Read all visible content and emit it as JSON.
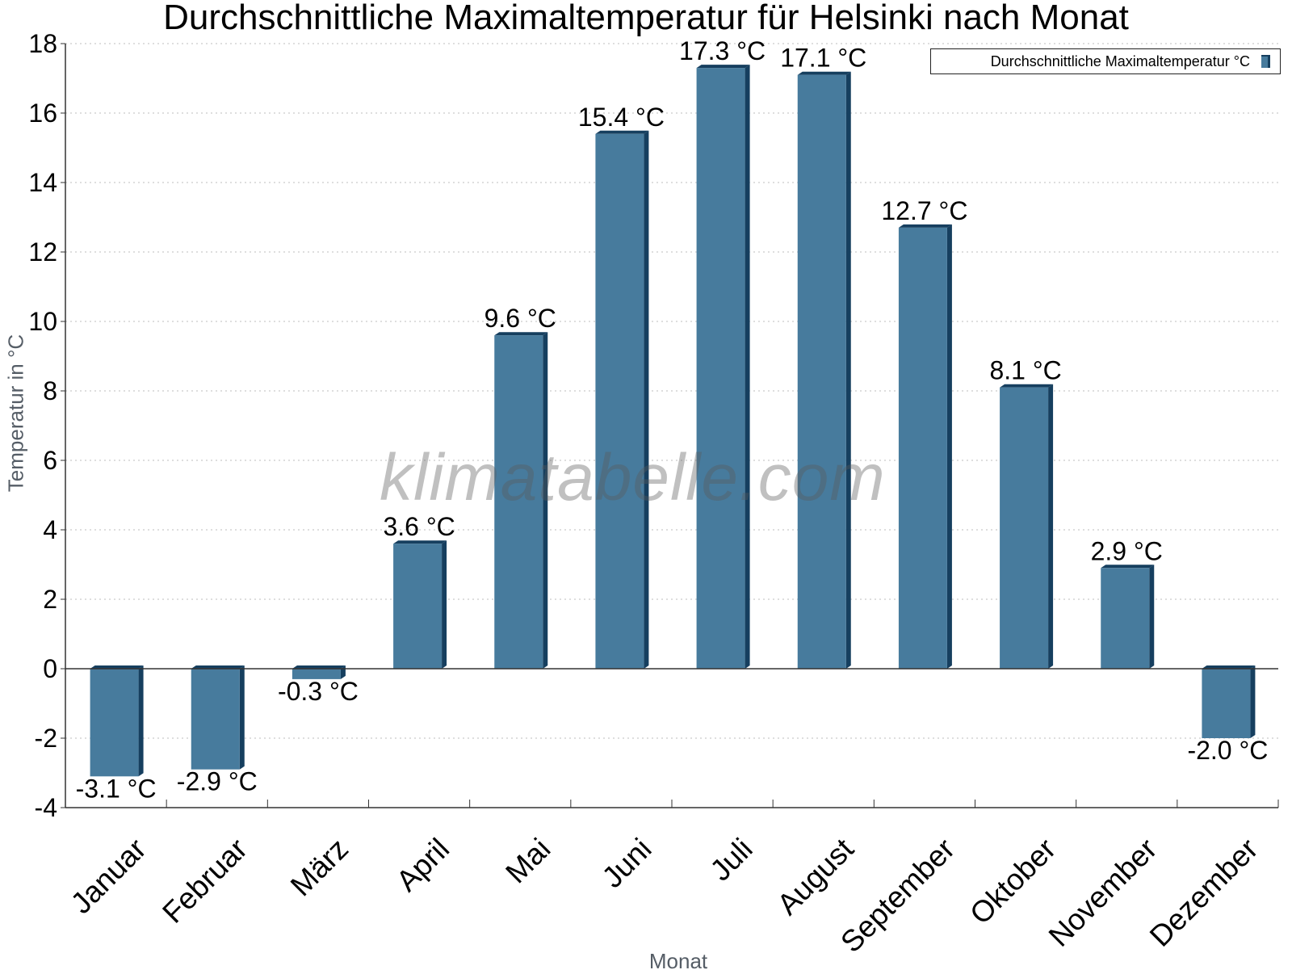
{
  "chart_data": {
    "type": "bar",
    "title": "Durchschnittliche Maximaltemperatur für Helsinki nach Monat",
    "xlabel": "Monat",
    "ylabel": "Temperatur in °C",
    "ylim": [
      -4,
      18
    ],
    "yticks": [
      -4,
      -2,
      0,
      2,
      4,
      6,
      8,
      10,
      12,
      14,
      16,
      18
    ],
    "grid": true,
    "legend_position": "top-right",
    "categories": [
      "Januar",
      "Februar",
      "März",
      "April",
      "Mai",
      "Juni",
      "Juli",
      "August",
      "September",
      "Oktober",
      "November",
      "Dezember"
    ],
    "series": [
      {
        "name": "Durchschnittliche Maximaltemperatur °C",
        "values": [
          -3.1,
          -2.9,
          -0.3,
          3.6,
          9.6,
          15.4,
          17.3,
          17.1,
          12.7,
          8.1,
          2.9,
          -2.0
        ],
        "data_labels": [
          "-3.1 °C",
          "-2.9 °C",
          "-0.3 °C",
          "3.6 °C",
          "9.6 °C",
          "15.4 °C",
          "17.3 °C",
          "17.1 °C",
          "12.7 °C",
          "8.1 °C",
          "2.9 °C",
          "-2.0 °C"
        ],
        "color": "#477b9d",
        "shade_color": "#163f5f"
      }
    ]
  },
  "watermark": "klimatabelle.com"
}
